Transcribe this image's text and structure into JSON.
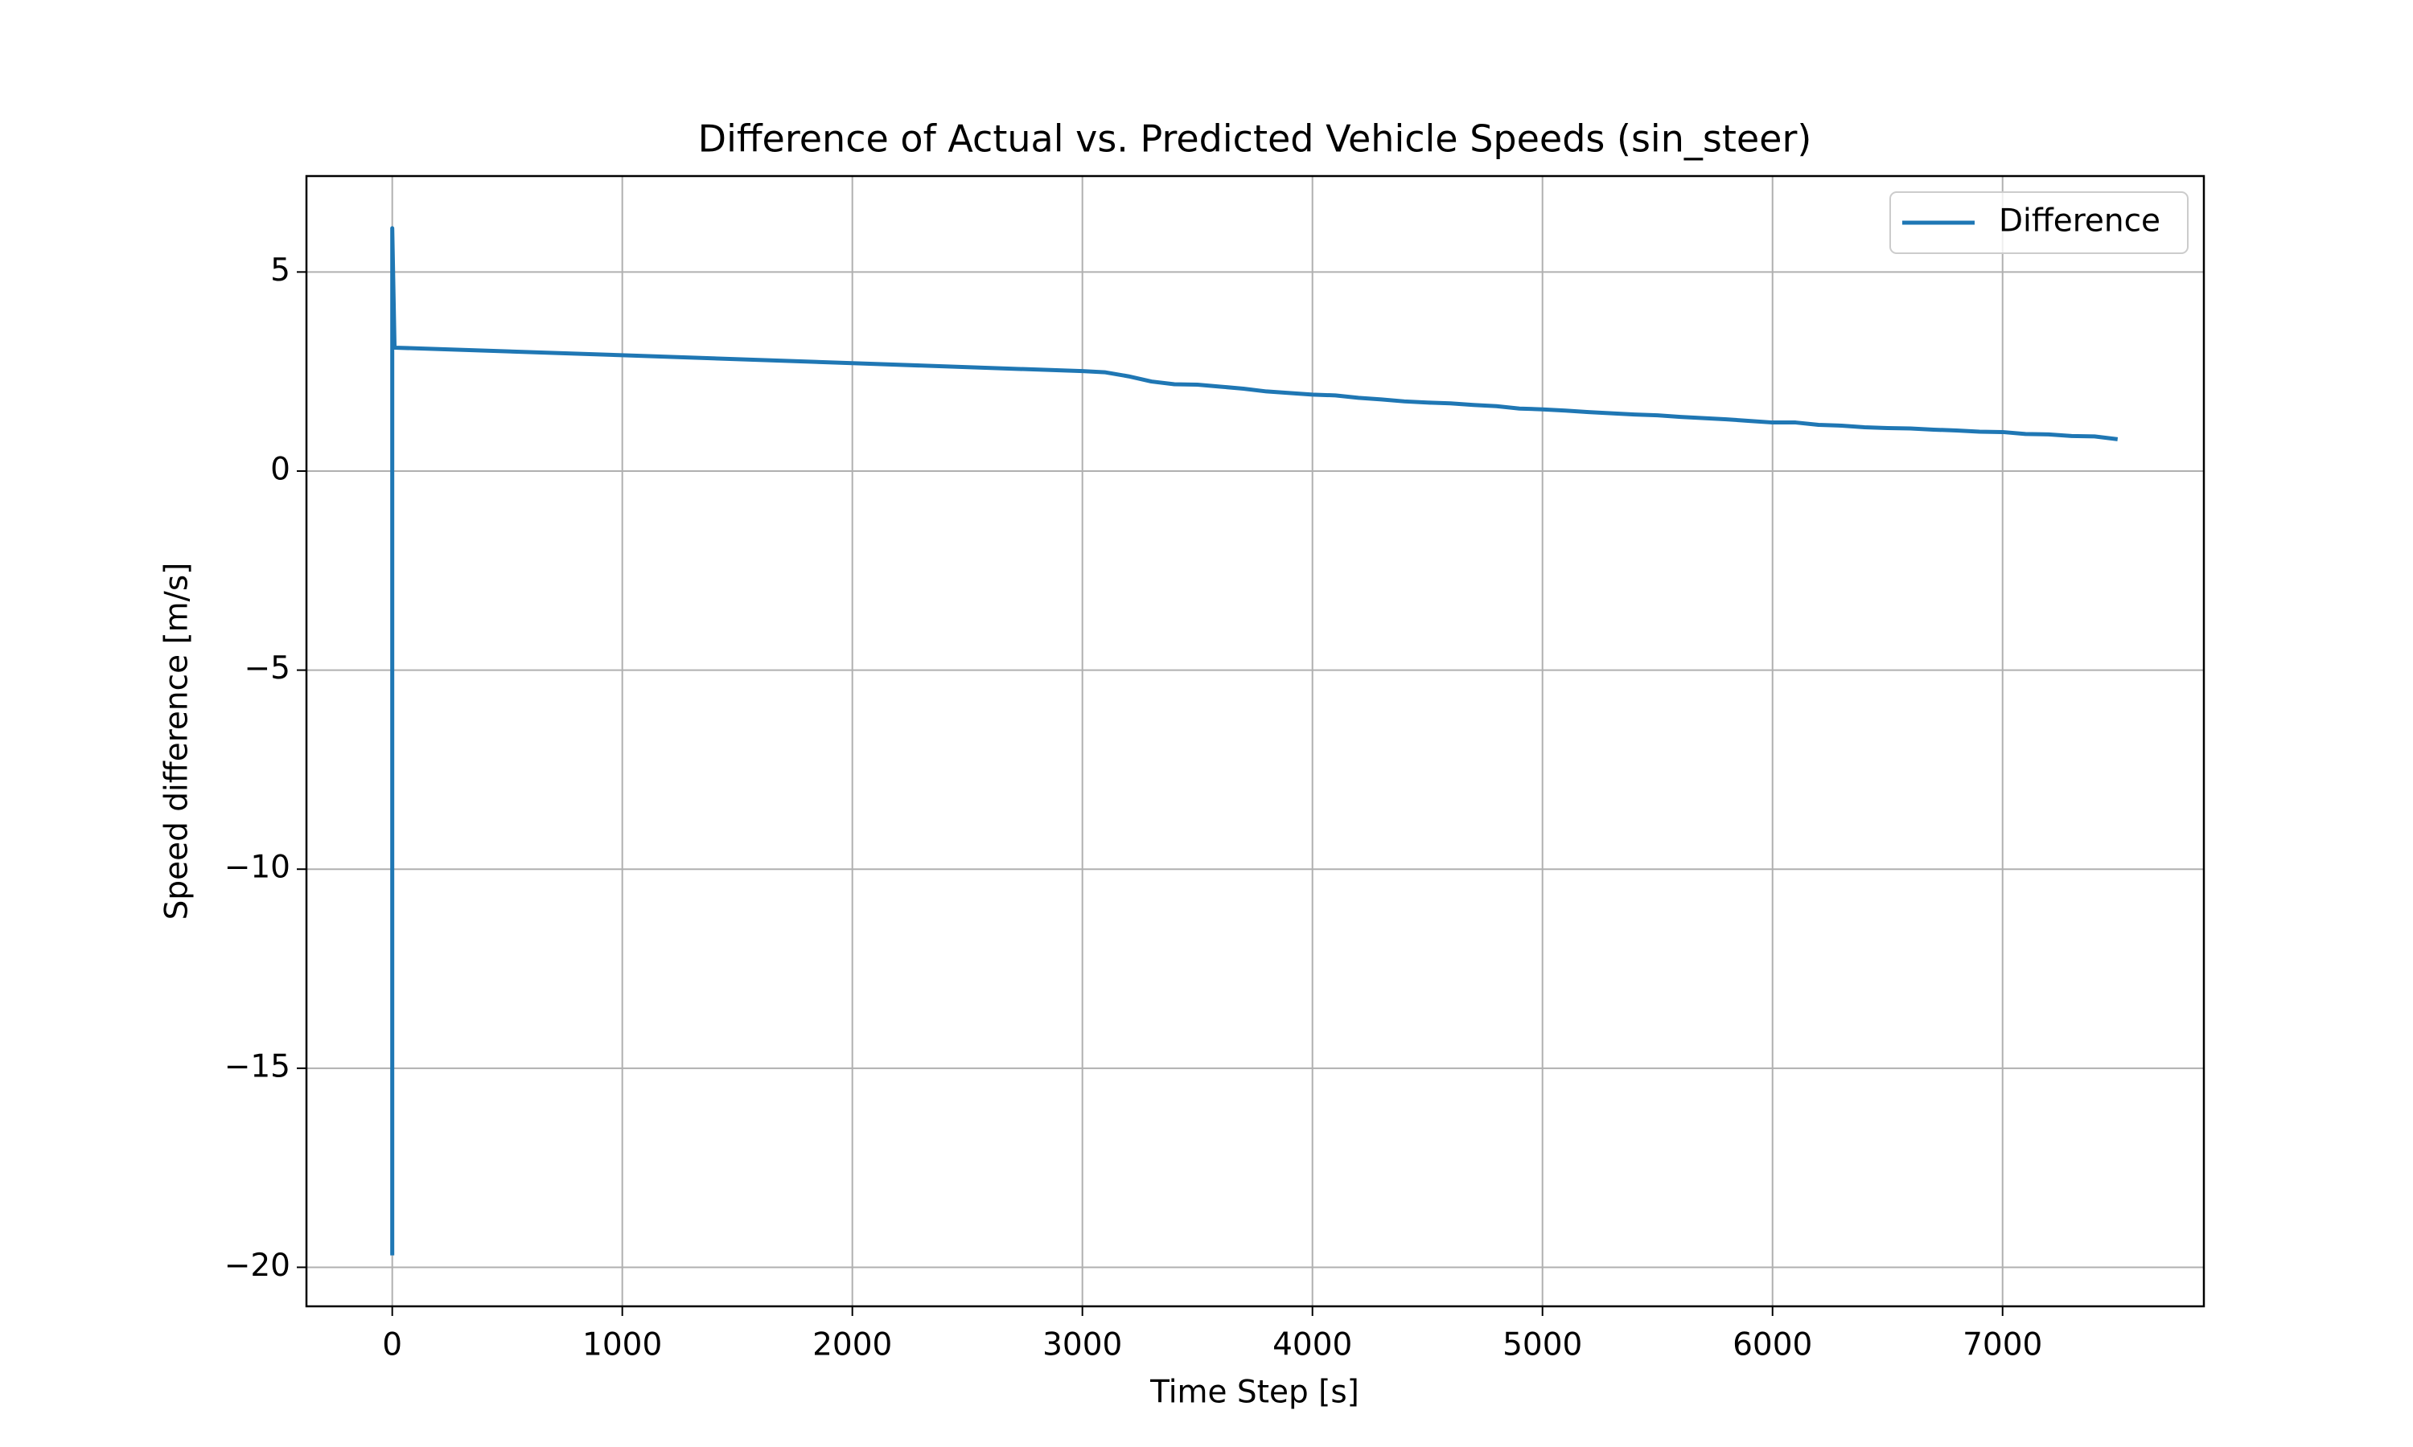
{
  "chart_data": {
    "type": "line",
    "title": "Difference of Actual vs. Predicted Vehicle Speeds (sin_steer)",
    "xlabel": "Time Step [s]",
    "ylabel": "Speed difference [m/s]",
    "x": [
      0,
      0,
      10,
      1000,
      2000,
      3000,
      3100,
      3200,
      3300,
      3400,
      3500,
      3600,
      3700,
      3800,
      3900,
      4000,
      4100,
      4200,
      4300,
      4400,
      4500,
      4600,
      4700,
      4800,
      4900,
      5000,
      5100,
      5200,
      5300,
      5400,
      5500,
      5600,
      5700,
      5800,
      5900,
      6000,
      6100,
      6200,
      6300,
      6400,
      6500,
      6600,
      6700,
      6800,
      6900,
      7000,
      7100,
      7200,
      7300,
      7400,
      7500
    ],
    "series": [
      {
        "name": "Difference",
        "color": "#1f77b4",
        "values": [
          -19.7,
          6.1,
          3.1,
          2.91,
          2.71,
          2.51,
          2.48,
          2.38,
          2.25,
          2.18,
          2.17,
          2.12,
          2.07,
          2.0,
          1.96,
          1.92,
          1.9,
          1.84,
          1.8,
          1.75,
          1.72,
          1.7,
          1.66,
          1.63,
          1.57,
          1.55,
          1.52,
          1.48,
          1.45,
          1.42,
          1.4,
          1.36,
          1.33,
          1.3,
          1.26,
          1.22,
          1.22,
          1.16,
          1.14,
          1.1,
          1.08,
          1.07,
          1.04,
          1.02,
          0.99,
          0.98,
          0.93,
          0.92,
          0.88,
          0.87,
          0.8
        ]
      }
    ],
    "xlim": [
      -373,
      7875
    ],
    "ylim": [
      -20.98,
      7.41
    ],
    "xticks": [
      0,
      1000,
      2000,
      3000,
      4000,
      5000,
      6000,
      7000
    ],
    "yticks": [
      {
        "value": -20,
        "label": "−20"
      },
      {
        "value": -15,
        "label": "−15"
      },
      {
        "value": -10,
        "label": "−10"
      },
      {
        "value": -5,
        "label": "−5"
      },
      0,
      5
    ],
    "grid": true,
    "legend": "upper right"
  }
}
